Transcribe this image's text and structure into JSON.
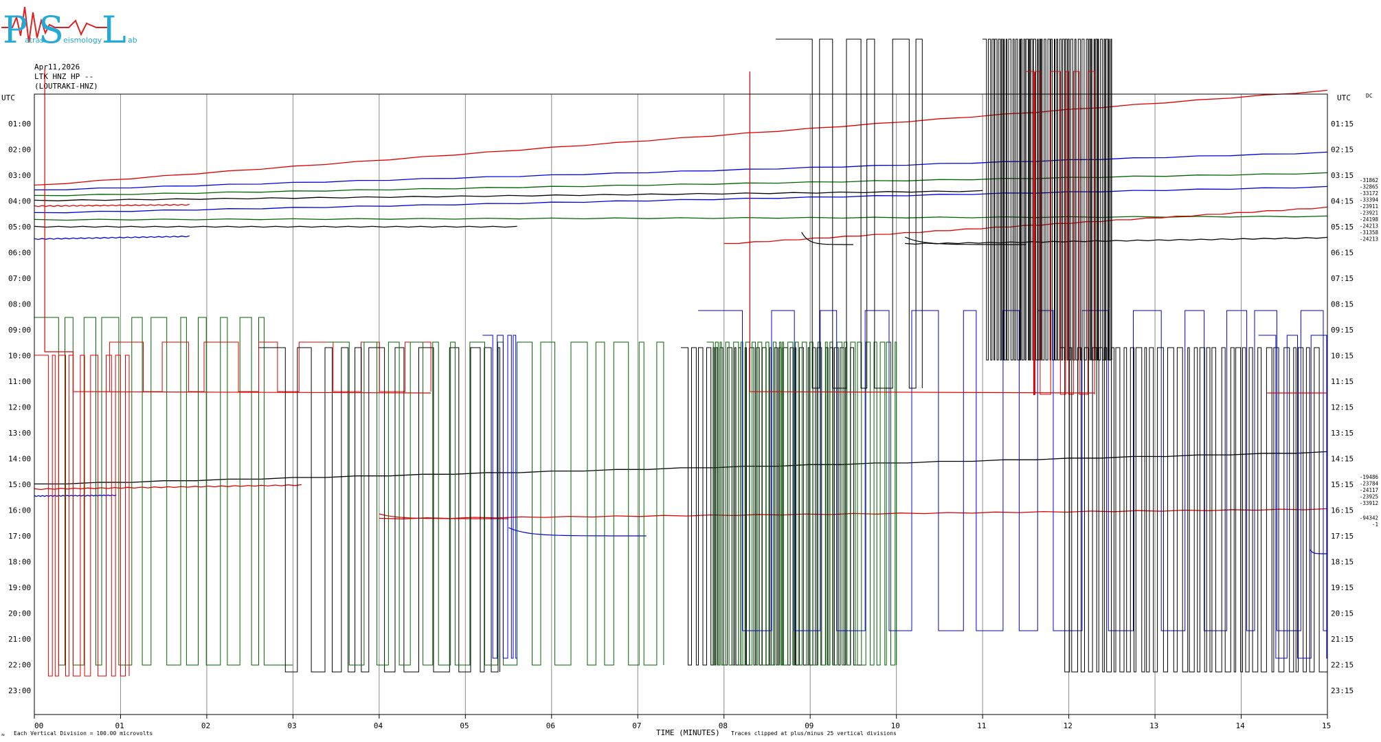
{
  "logo": {
    "letters": [
      "P",
      "S",
      "L"
    ],
    "words": [
      "atras",
      "eismology",
      "ab"
    ]
  },
  "header": {
    "date": "Apr11,2026",
    "station": "LTK HNZ HP --",
    "location": "(LOUTRAKI-HNZ)"
  },
  "chart_data": {
    "type": "line",
    "title": "Apr11,2026",
    "xlabel": "TIME (MINUTES)",
    "xlim": [
      0,
      15
    ],
    "x_ticks": [
      "00",
      "01",
      "02",
      "03",
      "04",
      "05",
      "06",
      "07",
      "08",
      "09",
      "10",
      "11",
      "12",
      "13",
      "14",
      "15"
    ],
    "left_axis_label": "UTC",
    "right_axis_label": "UTC",
    "rows_left": [
      "01:00",
      "02:00",
      "03:00",
      "04:00",
      "05:00",
      "06:00",
      "07:00",
      "08:00",
      "09:00",
      "10:00",
      "11:00",
      "12:00",
      "13:00",
      "14:00",
      "15:00",
      "16:00",
      "17:00",
      "18:00",
      "19:00",
      "20:00",
      "21:00",
      "22:00",
      "23:00"
    ],
    "rows_right": [
      "01:15",
      "02:15",
      "03:15",
      "04:15",
      "05:15",
      "06:15",
      "07:15",
      "08:15",
      "09:15",
      "10:15",
      "11:15",
      "12:15",
      "13:15",
      "14:15",
      "15:15",
      "16:15",
      "17:15",
      "18:15",
      "19:15",
      "20:15",
      "21:15",
      "22:15",
      "23:15"
    ],
    "dc_label": "DC",
    "dc_offsets_a": [
      "-31862",
      "-32865",
      "-33172",
      "-33394",
      "-23911",
      "-23921",
      "-24198",
      "-24213",
      "-31358",
      "-24213"
    ],
    "dc_offsets_b": [
      "-19486",
      "-23784",
      "-24117",
      "-23925",
      "-33912",
      "-94342",
      "-1"
    ],
    "trace_colors": [
      "#000000",
      "#e00000",
      "#0000dd",
      "#006400"
    ],
    "footer_left": "Each Vertical Division = 100.00 microvolts",
    "footer_right": "Traces clipped at plus/minus 25 vertical divisions",
    "corner_mark": "≈"
  }
}
